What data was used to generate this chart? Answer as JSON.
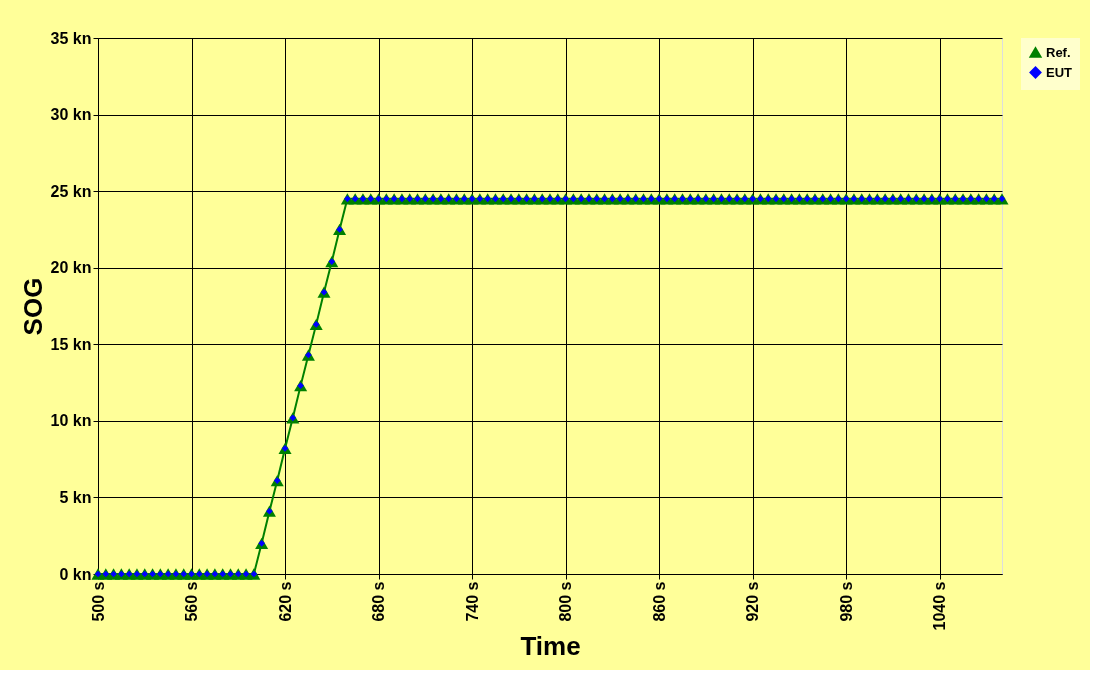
{
  "chart_data": {
    "type": "line",
    "xlabel": "Time",
    "ylabel": "SOG",
    "x": [
      500,
      505,
      510,
      515,
      520,
      525,
      530,
      535,
      540,
      545,
      550,
      555,
      560,
      565,
      570,
      575,
      580,
      585,
      590,
      595,
      600,
      605,
      610,
      615,
      620,
      625,
      630,
      635,
      640,
      645,
      650,
      655,
      660,
      665,
      670,
      675,
      680,
      685,
      690,
      695,
      700,
      705,
      710,
      715,
      720,
      725,
      730,
      735,
      740,
      745,
      750,
      755,
      760,
      765,
      770,
      775,
      780,
      785,
      790,
      795,
      800,
      805,
      810,
      815,
      820,
      825,
      830,
      835,
      840,
      845,
      850,
      855,
      860,
      865,
      870,
      875,
      880,
      885,
      890,
      895,
      900,
      905,
      910,
      915,
      920,
      925,
      930,
      935,
      940,
      945,
      950,
      955,
      960,
      965,
      970,
      975,
      980,
      985,
      990,
      995,
      1000,
      1005,
      1010,
      1015,
      1020,
      1025,
      1030,
      1035,
      1040,
      1045,
      1050,
      1055,
      1060,
      1065,
      1070,
      1075,
      1080
    ],
    "series": [
      {
        "name": "Ref.",
        "marker": "triangle",
        "line_style": "solid",
        "color": "#008000",
        "values": [
          0,
          0,
          0,
          0,
          0,
          0,
          0,
          0,
          0,
          0,
          0,
          0,
          0,
          0,
          0,
          0,
          0,
          0,
          0,
          0,
          0,
          2.0,
          4.1,
          6.1,
          8.2,
          10.2,
          12.3,
          14.3,
          16.3,
          18.4,
          20.4,
          22.5,
          24.5,
          24.5,
          24.5,
          24.5,
          24.5,
          24.5,
          24.5,
          24.5,
          24.5,
          24.5,
          24.5,
          24.5,
          24.5,
          24.5,
          24.5,
          24.5,
          24.5,
          24.5,
          24.5,
          24.5,
          24.5,
          24.5,
          24.5,
          24.5,
          24.5,
          24.5,
          24.5,
          24.5,
          24.5,
          24.5,
          24.5,
          24.5,
          24.5,
          24.5,
          24.5,
          24.5,
          24.5,
          24.5,
          24.5,
          24.5,
          24.5,
          24.5,
          24.5,
          24.5,
          24.5,
          24.5,
          24.5,
          24.5,
          24.5,
          24.5,
          24.5,
          24.5,
          24.5,
          24.5,
          24.5,
          24.5,
          24.5,
          24.5,
          24.5,
          24.5,
          24.5,
          24.5,
          24.5,
          24.5,
          24.5,
          24.5,
          24.5,
          24.5,
          24.5,
          24.5,
          24.5,
          24.5,
          24.5,
          24.5,
          24.5,
          24.5,
          24.5,
          24.5,
          24.5,
          24.5,
          24.5,
          24.5,
          24.5,
          24.5,
          24.5
        ]
      },
      {
        "name": "EUT",
        "type": "scatter",
        "marker": "diamond",
        "color": "#0000ff",
        "values": [
          0,
          0,
          0,
          0,
          0,
          0,
          0,
          0,
          0,
          0,
          0,
          0,
          0,
          0,
          0,
          0,
          0,
          0,
          0,
          0,
          0,
          2.0,
          4.1,
          6.1,
          8.2,
          10.2,
          12.3,
          14.3,
          16.3,
          18.4,
          20.4,
          22.5,
          24.5,
          24.5,
          24.5,
          24.5,
          24.5,
          24.5,
          24.5,
          24.5,
          24.5,
          24.5,
          24.5,
          24.5,
          24.5,
          24.5,
          24.5,
          24.5,
          24.5,
          24.5,
          24.5,
          24.5,
          24.5,
          24.5,
          24.5,
          24.5,
          24.5,
          24.5,
          24.5,
          24.5,
          24.5,
          24.5,
          24.5,
          24.5,
          24.5,
          24.5,
          24.5,
          24.5,
          24.5,
          24.5,
          24.5,
          24.5,
          24.5,
          24.5,
          24.5,
          24.5,
          24.5,
          24.5,
          24.5,
          24.5,
          24.5,
          24.5,
          24.5,
          24.5,
          24.5,
          24.5,
          24.5,
          24.5,
          24.5,
          24.5,
          24.5,
          24.5,
          24.5,
          24.5,
          24.5,
          24.5,
          24.5,
          24.5,
          24.5,
          24.5,
          24.5,
          24.5,
          24.5,
          24.5,
          24.5,
          24.5,
          24.5,
          24.5,
          24.5,
          24.5,
          24.5,
          24.5,
          24.5,
          24.5,
          24.5,
          24.5,
          24.5
        ]
      }
    ],
    "xlim": [
      500,
      1080
    ],
    "xticks": [
      {
        "value": 500,
        "label": "500 s"
      },
      {
        "value": 560,
        "label": "560 s"
      },
      {
        "value": 620,
        "label": "620 s"
      },
      {
        "value": 680,
        "label": "680 s"
      },
      {
        "value": 740,
        "label": "740 s"
      },
      {
        "value": 800,
        "label": "800 s"
      },
      {
        "value": 860,
        "label": "860 s"
      },
      {
        "value": 920,
        "label": "920 s"
      },
      {
        "value": 980,
        "label": "980 s"
      },
      {
        "value": 1040,
        "label": "1040 s"
      }
    ],
    "ylim": [
      0,
      35
    ],
    "yticks": [
      {
        "value": 0,
        "label": "0 kn"
      },
      {
        "value": 5,
        "label": "5 kn"
      },
      {
        "value": 10,
        "label": "10 kn"
      },
      {
        "value": 15,
        "label": "15 kn"
      },
      {
        "value": 20,
        "label": "20 kn"
      },
      {
        "value": 25,
        "label": "25 kn"
      },
      {
        "value": 30,
        "label": "30 kn"
      },
      {
        "value": 35,
        "label": "35 kn"
      }
    ],
    "grid": true,
    "legend": "right"
  }
}
